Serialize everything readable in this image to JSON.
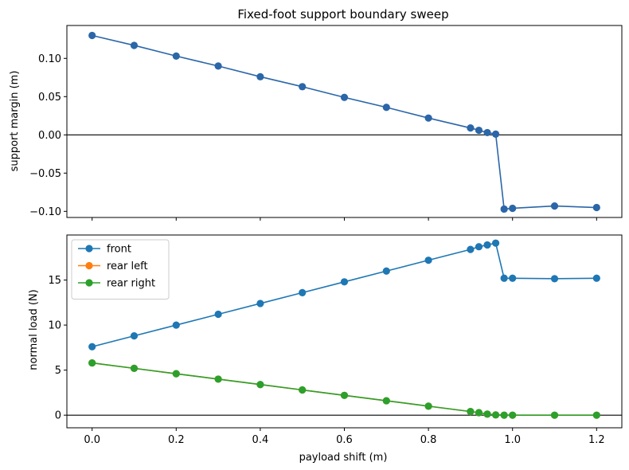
{
  "chart_data": [
    {
      "type": "line",
      "title": "Fixed-foot support boundary sweep",
      "xlabel": "",
      "ylabel": "support margin (m)",
      "xlim": [
        -0.06,
        1.26
      ],
      "ylim": [
        -0.108,
        0.143
      ],
      "yticks": [
        -0.1,
        -0.05,
        0.0,
        0.05,
        0.1
      ],
      "ytick_labels": [
        "−0.10",
        "−0.05",
        "0.00",
        "0.05",
        "0.10"
      ],
      "xticks": [
        0.0,
        0.2,
        0.4,
        0.6,
        0.8,
        1.0,
        1.2
      ],
      "xtick_labels_visible": false,
      "hline": 0,
      "grid": false,
      "series": [
        {
          "color": "#2b66a8",
          "x": [
            0.0,
            0.1,
            0.2,
            0.3,
            0.4,
            0.5,
            0.6,
            0.7,
            0.8,
            0.9,
            0.92,
            0.94,
            0.96,
            0.98,
            1.0,
            1.1,
            1.2
          ],
          "y": [
            0.13,
            0.117,
            0.103,
            0.09,
            0.076,
            0.063,
            0.049,
            0.036,
            0.022,
            0.009,
            0.006,
            0.003,
            0.001,
            -0.097,
            -0.096,
            -0.093,
            -0.095
          ]
        }
      ]
    },
    {
      "type": "line",
      "title": "",
      "xlabel": "payload shift (m)",
      "ylabel": "normal load (N)",
      "xlim": [
        -0.06,
        1.26
      ],
      "ylim": [
        -1.4,
        20.0
      ],
      "yticks": [
        0,
        5,
        10,
        15
      ],
      "ytick_labels": [
        "0",
        "5",
        "10",
        "15"
      ],
      "xticks": [
        0.0,
        0.2,
        0.4,
        0.6,
        0.8,
        1.0,
        1.2
      ],
      "xtick_labels": [
        "0.0",
        "0.2",
        "0.4",
        "0.6",
        "0.8",
        "1.0",
        "1.2"
      ],
      "hline": 0,
      "grid": false,
      "legend_position": "top-left",
      "series": [
        {
          "name": "front",
          "color": "#1f77b4",
          "x": [
            0.0,
            0.1,
            0.2,
            0.3,
            0.4,
            0.5,
            0.6,
            0.7,
            0.8,
            0.9,
            0.92,
            0.94,
            0.96,
            0.98,
            1.0,
            1.1,
            1.2
          ],
          "y": [
            7.6,
            8.8,
            10.0,
            11.2,
            12.4,
            13.6,
            14.8,
            16.0,
            17.2,
            18.4,
            18.7,
            18.9,
            19.1,
            15.2,
            15.2,
            15.15,
            15.2
          ]
        },
        {
          "name": "rear left",
          "color": "#ff7f0e",
          "x": [
            0.0,
            0.1,
            0.2,
            0.3,
            0.4,
            0.5,
            0.6,
            0.7,
            0.8,
            0.9,
            0.92,
            0.94,
            0.96,
            0.98,
            1.0,
            1.1,
            1.2
          ],
          "y": [
            5.8,
            5.2,
            4.6,
            4.0,
            3.4,
            2.8,
            2.2,
            1.6,
            1.0,
            0.4,
            0.28,
            0.12,
            0.03,
            0.0,
            0.0,
            0.0,
            0.0
          ]
        },
        {
          "name": "rear right",
          "color": "#2ca02c",
          "x": [
            0.0,
            0.1,
            0.2,
            0.3,
            0.4,
            0.5,
            0.6,
            0.7,
            0.8,
            0.9,
            0.92,
            0.94,
            0.96,
            0.98,
            1.0,
            1.1,
            1.2
          ],
          "y": [
            5.8,
            5.2,
            4.6,
            4.0,
            3.4,
            2.8,
            2.2,
            1.6,
            1.0,
            0.4,
            0.28,
            0.12,
            0.03,
            0.0,
            0.0,
            0.0,
            0.0
          ]
        }
      ]
    }
  ]
}
